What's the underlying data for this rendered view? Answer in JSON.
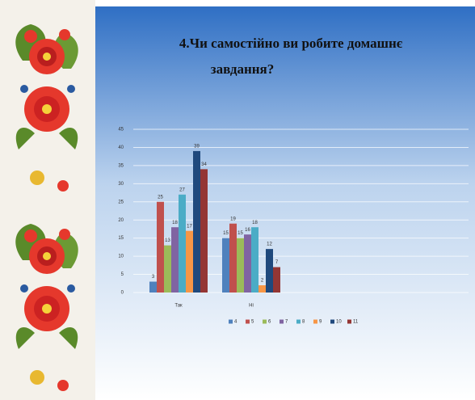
{
  "chart_data": {
    "type": "bar",
    "title": "4.Чи самостійно ви робите домашнє завдання?",
    "categories": [
      "Так",
      "Ні"
    ],
    "series": [
      {
        "name": "4",
        "color": "#4f81bd",
        "values": [
          3,
          15
        ]
      },
      {
        "name": "5",
        "color": "#c0504d",
        "values": [
          25,
          19
        ]
      },
      {
        "name": "6",
        "color": "#9bbb59",
        "values": [
          13,
          15
        ]
      },
      {
        "name": "7",
        "color": "#8064a2",
        "values": [
          18,
          16
        ]
      },
      {
        "name": "8",
        "color": "#4bacc6",
        "values": [
          27,
          18
        ]
      },
      {
        "name": "9",
        "color": "#f79646",
        "values": [
          17,
          2
        ]
      },
      {
        "name": "10",
        "color": "#1f497d",
        "values": [
          39,
          12
        ]
      },
      {
        "name": "11",
        "color": "#943634",
        "values": [
          34,
          7
        ]
      }
    ],
    "ylim": [
      0,
      45
    ],
    "yticks": [
      0,
      5,
      10,
      15,
      20,
      25,
      30,
      35,
      40,
      45
    ],
    "grid": true
  }
}
